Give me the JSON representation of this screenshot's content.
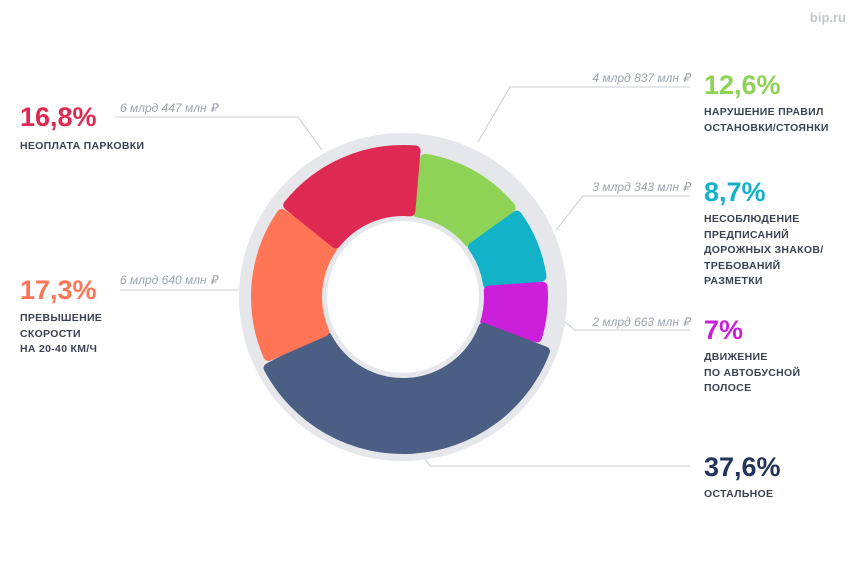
{
  "brand": "bip.ru",
  "chart_data": {
    "type": "pie",
    "title": "",
    "donut": true,
    "slices": [
      {
        "label": "НАРУШЕНИЕ ПРАВИЛ\nОСТАНОВКИ/СТОЯНКИ",
        "value": 12.6,
        "percent_label": "12,6%",
        "amount": "4 млрд 837 млн ₽",
        "color": "#8ed355"
      },
      {
        "label": "НЕСОБЛЮДЕНИЕ\nПРЕДПИСАНИЙ\nДОРОЖНЫХ ЗНАКОВ/\nТРЕБОВАНИЙ\nРАЗМЕТКИ",
        "value": 8.7,
        "percent_label": "8,7%",
        "amount": "3 млрд 343 млн ₽",
        "color": "#12b3c9"
      },
      {
        "label": "ДВИЖЕНИЕ\nПО АВТОБУСНОЙ\nПОЛОСЕ",
        "value": 7,
        "percent_label": "7%",
        "amount": "2 млрд 663 млн ₽",
        "color": "#cc1fd9"
      },
      {
        "label": "ОСТАЛЬНОЕ",
        "value": 37.6,
        "percent_label": "37,6%",
        "amount": "",
        "color": "#4a5f83"
      },
      {
        "label": "ПРЕВЫШЕНИЕ\nСКОРОСТИ\nНА 20-40 КМ/Ч",
        "value": 17.3,
        "percent_label": "17,3%",
        "amount": "6 млрд 640 млн ₽",
        "color": "#ff7556"
      },
      {
        "label": "НЕОПЛАТА ПАРКОВКИ",
        "value": 16.8,
        "percent_label": "16,8%",
        "amount": "6 млрд 447 млн ₽",
        "color": "#de2952"
      }
    ],
    "text_color_overrides": {
      "ОСТАЛЬНОЕ": "#22345a"
    }
  }
}
